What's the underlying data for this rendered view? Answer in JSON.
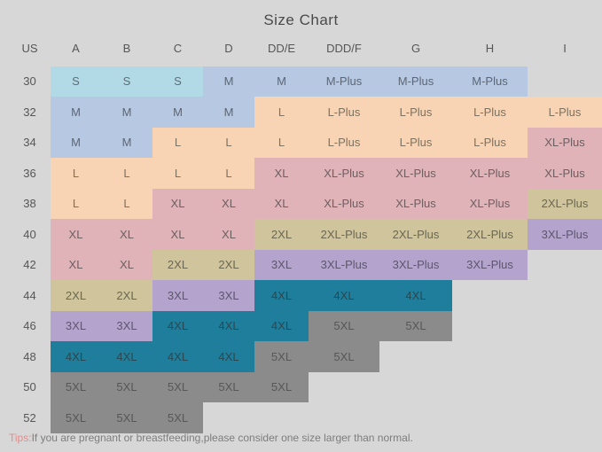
{
  "title": "Size Chart",
  "columns": [
    "US",
    "A",
    "B",
    "C",
    "D",
    "DD/E",
    "DDD/F",
    "G",
    "H",
    "I"
  ],
  "palette": {
    "lightblue": {
      "bg": "#b2d9e6",
      "text": "#5f6e76"
    },
    "bluegray": {
      "bg": "#b6c8e2",
      "text": "#5e6673"
    },
    "peach": {
      "bg": "#f8d4b4",
      "text": "#7d7260"
    },
    "pink": {
      "bg": "#dfb3b7",
      "text": "#6e5f62"
    },
    "olive": {
      "bg": "#cfc49c",
      "text": "#6b6752"
    },
    "purple": {
      "bg": "#b4a4cd",
      "text": "#5d566e"
    },
    "teal": {
      "bg": "#1e7e9b",
      "text": "#2d4751"
    },
    "gray": {
      "bg": "#8b8b8b",
      "text": "#575757"
    }
  },
  "rows": [
    {
      "us": "30",
      "cells": [
        {
          "label": "S",
          "color": "lightblue"
        },
        {
          "label": "S",
          "color": "lightblue"
        },
        {
          "label": "S",
          "color": "lightblue"
        },
        {
          "label": "M",
          "color": "bluegray"
        },
        {
          "label": "M",
          "color": "bluegray"
        },
        {
          "label": "M-Plus",
          "color": "bluegray"
        },
        {
          "label": "M-Plus",
          "color": "bluegray"
        },
        {
          "label": "M-Plus",
          "color": "bluegray"
        },
        null
      ]
    },
    {
      "us": "32",
      "cells": [
        {
          "label": "M",
          "color": "bluegray"
        },
        {
          "label": "M",
          "color": "bluegray"
        },
        {
          "label": "M",
          "color": "bluegray"
        },
        {
          "label": "M",
          "color": "bluegray"
        },
        {
          "label": "L",
          "color": "peach"
        },
        {
          "label": "L-Plus",
          "color": "peach"
        },
        {
          "label": "L-Plus",
          "color": "peach"
        },
        {
          "label": "L-Plus",
          "color": "peach"
        },
        {
          "label": "L-Plus",
          "color": "peach"
        }
      ]
    },
    {
      "us": "34",
      "cells": [
        {
          "label": "M",
          "color": "bluegray"
        },
        {
          "label": "M",
          "color": "bluegray"
        },
        {
          "label": "L",
          "color": "peach"
        },
        {
          "label": "L",
          "color": "peach"
        },
        {
          "label": "L",
          "color": "peach"
        },
        {
          "label": "L-Plus",
          "color": "peach"
        },
        {
          "label": "L-Plus",
          "color": "peach"
        },
        {
          "label": "L-Plus",
          "color": "peach"
        },
        {
          "label": "XL-Plus",
          "color": "pink"
        }
      ]
    },
    {
      "us": "36",
      "cells": [
        {
          "label": "L",
          "color": "peach"
        },
        {
          "label": "L",
          "color": "peach"
        },
        {
          "label": "L",
          "color": "peach"
        },
        {
          "label": "L",
          "color": "peach"
        },
        {
          "label": "XL",
          "color": "pink"
        },
        {
          "label": "XL-Plus",
          "color": "pink"
        },
        {
          "label": "XL-Plus",
          "color": "pink"
        },
        {
          "label": "XL-Plus",
          "color": "pink"
        },
        {
          "label": "XL-Plus",
          "color": "pink"
        }
      ]
    },
    {
      "us": "38",
      "cells": [
        {
          "label": "L",
          "color": "peach"
        },
        {
          "label": "L",
          "color": "peach"
        },
        {
          "label": "XL",
          "color": "pink"
        },
        {
          "label": "XL",
          "color": "pink"
        },
        {
          "label": "XL",
          "color": "pink"
        },
        {
          "label": "XL-Plus",
          "color": "pink"
        },
        {
          "label": "XL-Plus",
          "color": "pink"
        },
        {
          "label": "XL-Plus",
          "color": "pink"
        },
        {
          "label": "2XL-Plus",
          "color": "olive"
        }
      ]
    },
    {
      "us": "40",
      "cells": [
        {
          "label": "XL",
          "color": "pink"
        },
        {
          "label": "XL",
          "color": "pink"
        },
        {
          "label": "XL",
          "color": "pink"
        },
        {
          "label": "XL",
          "color": "pink"
        },
        {
          "label": "2XL",
          "color": "olive"
        },
        {
          "label": "2XL-Plus",
          "color": "olive"
        },
        {
          "label": "2XL-Plus",
          "color": "olive"
        },
        {
          "label": "2XL-Plus",
          "color": "olive"
        },
        {
          "label": "3XL-Plus",
          "color": "purple"
        }
      ]
    },
    {
      "us": "42",
      "cells": [
        {
          "label": "XL",
          "color": "pink"
        },
        {
          "label": "XL",
          "color": "pink"
        },
        {
          "label": "2XL",
          "color": "olive"
        },
        {
          "label": "2XL",
          "color": "olive"
        },
        {
          "label": "3XL",
          "color": "purple"
        },
        {
          "label": "3XL-Plus",
          "color": "purple"
        },
        {
          "label": "3XL-Plus",
          "color": "purple"
        },
        {
          "label": "3XL-Plus",
          "color": "purple"
        },
        null
      ]
    },
    {
      "us": "44",
      "cells": [
        {
          "label": "2XL",
          "color": "olive"
        },
        {
          "label": "2XL",
          "color": "olive"
        },
        {
          "label": "3XL",
          "color": "purple"
        },
        {
          "label": "3XL",
          "color": "purple"
        },
        {
          "label": "4XL",
          "color": "teal"
        },
        {
          "label": "4XL",
          "color": "teal"
        },
        {
          "label": "4XL",
          "color": "teal"
        },
        null,
        null
      ]
    },
    {
      "us": "46",
      "cells": [
        {
          "label": "3XL",
          "color": "purple"
        },
        {
          "label": "3XL",
          "color": "purple"
        },
        {
          "label": "4XL",
          "color": "teal"
        },
        {
          "label": "4XL",
          "color": "teal"
        },
        {
          "label": "4XL",
          "color": "teal"
        },
        {
          "label": "5XL",
          "color": "gray"
        },
        {
          "label": "5XL",
          "color": "gray"
        },
        null,
        null
      ]
    },
    {
      "us": "48",
      "cells": [
        {
          "label": "4XL",
          "color": "teal"
        },
        {
          "label": "4XL",
          "color": "teal"
        },
        {
          "label": "4XL",
          "color": "teal"
        },
        {
          "label": "4XL",
          "color": "teal"
        },
        {
          "label": "5XL",
          "color": "gray"
        },
        {
          "label": "5XL",
          "color": "gray"
        },
        null,
        null,
        null
      ]
    },
    {
      "us": "50",
      "cells": [
        {
          "label": "5XL",
          "color": "gray"
        },
        {
          "label": "5XL",
          "color": "gray"
        },
        {
          "label": "5XL",
          "color": "gray"
        },
        {
          "label": "5XL",
          "color": "gray"
        },
        {
          "label": "5XL",
          "color": "gray"
        },
        null,
        null,
        null,
        null
      ]
    },
    {
      "us": "52",
      "cells": [
        {
          "label": "5XL",
          "color": "gray"
        },
        {
          "label": "5XL",
          "color": "gray"
        },
        {
          "label": "5XL",
          "color": "gray"
        },
        null,
        null,
        null,
        null,
        null,
        null
      ]
    }
  ],
  "tip": {
    "prefix": "Tips:",
    "text": "If you are pregnant or breastfeeding,please consider one size larger than normal."
  },
  "chart_data": {
    "type": "table",
    "title": "Size Chart",
    "columns": [
      "US",
      "A",
      "B",
      "C",
      "D",
      "DD/E",
      "DDD/F",
      "G",
      "H",
      "I"
    ],
    "rows": [
      [
        "30",
        "S",
        "S",
        "S",
        "M",
        "M",
        "M-Plus",
        "M-Plus",
        "M-Plus",
        ""
      ],
      [
        "32",
        "M",
        "M",
        "M",
        "M",
        "L",
        "L-Plus",
        "L-Plus",
        "L-Plus",
        "L-Plus"
      ],
      [
        "34",
        "M",
        "M",
        "L",
        "L",
        "L",
        "L-Plus",
        "L-Plus",
        "L-Plus",
        "XL-Plus"
      ],
      [
        "36",
        "L",
        "L",
        "L",
        "L",
        "XL",
        "XL-Plus",
        "XL-Plus",
        "XL-Plus",
        "XL-Plus"
      ],
      [
        "38",
        "L",
        "L",
        "XL",
        "XL",
        "XL",
        "XL-Plus",
        "XL-Plus",
        "XL-Plus",
        "2XL-Plus"
      ],
      [
        "40",
        "XL",
        "XL",
        "XL",
        "XL",
        "2XL",
        "2XL-Plus",
        "2XL-Plus",
        "2XL-Plus",
        "3XL-Plus"
      ],
      [
        "42",
        "XL",
        "XL",
        "2XL",
        "2XL",
        "3XL",
        "3XL-Plus",
        "3XL-Plus",
        "3XL-Plus",
        ""
      ],
      [
        "44",
        "2XL",
        "2XL",
        "3XL",
        "3XL",
        "4XL",
        "4XL",
        "4XL",
        "",
        ""
      ],
      [
        "46",
        "3XL",
        "3XL",
        "4XL",
        "4XL",
        "4XL",
        "5XL",
        "5XL",
        "",
        ""
      ],
      [
        "48",
        "4XL",
        "4XL",
        "4XL",
        "4XL",
        "5XL",
        "5XL",
        "",
        "",
        ""
      ],
      [
        "50",
        "5XL",
        "5XL",
        "5XL",
        "5XL",
        "5XL",
        "",
        "",
        "",
        ""
      ],
      [
        "52",
        "5XL",
        "5XL",
        "5XL",
        "",
        "",
        "",
        "",
        "",
        ""
      ]
    ],
    "legend_position": "none",
    "grid": false,
    "note": "Tips:If you are pregnant or breastfeeding,please consider one size larger than normal."
  }
}
